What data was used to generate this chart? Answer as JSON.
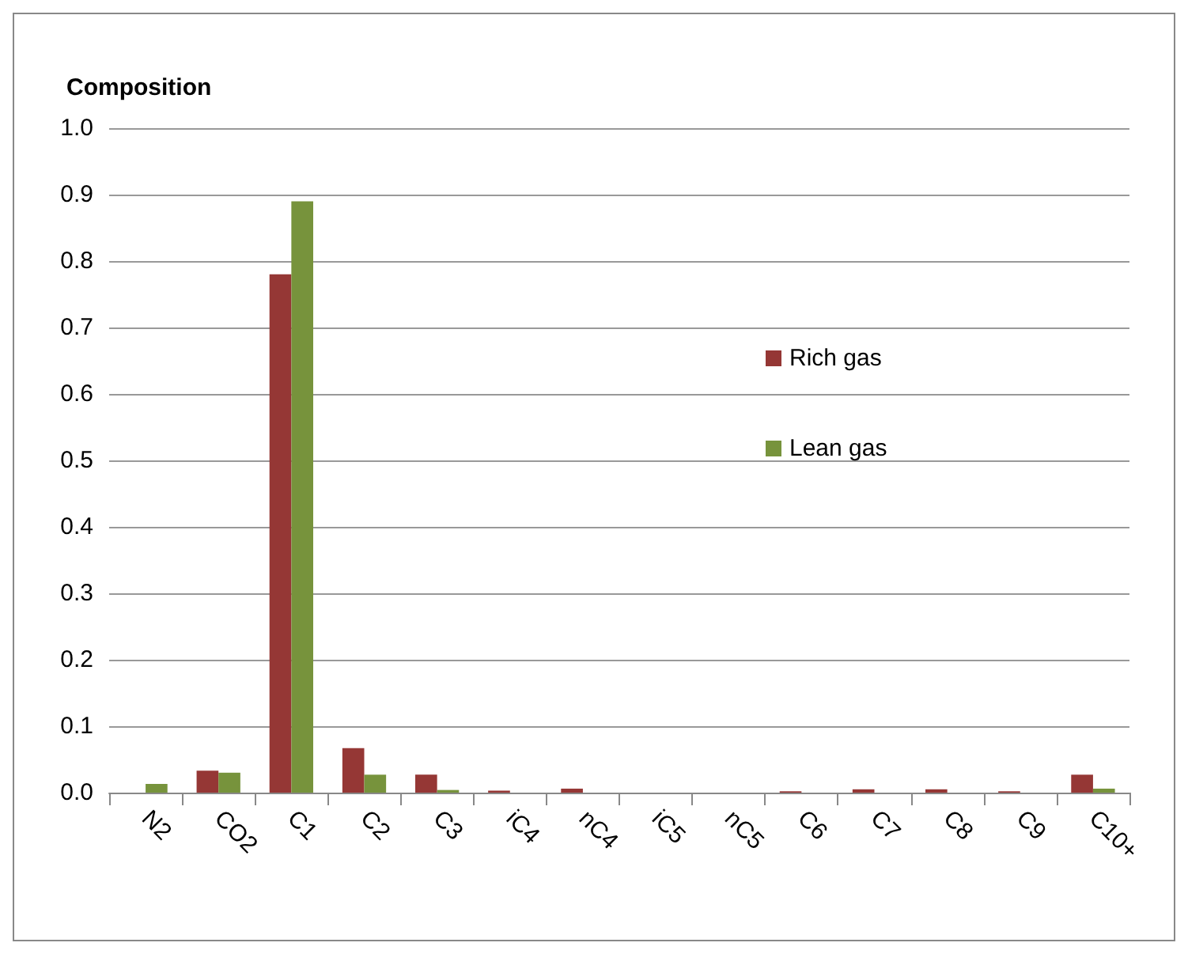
{
  "chart_data": {
    "type": "bar",
    "title": "Composition",
    "categories": [
      "N2",
      "CO2",
      "C1",
      "C2",
      "C3",
      "iC4",
      "nC4",
      "iC5",
      "nC5",
      "C6",
      "C7",
      "C8",
      "C9",
      "C10+"
    ],
    "series": [
      {
        "name": "Rich gas",
        "color": "#953735",
        "values": [
          0,
          0.033,
          0.78,
          0.067,
          0.027,
          0.003,
          0.006,
          0,
          0,
          0.002,
          0.005,
          0.005,
          0.002,
          0.027
        ]
      },
      {
        "name": "Lean gas",
        "color": "#77933c",
        "values": [
          0.013,
          0.03,
          0.89,
          0.027,
          0.004,
          0,
          0,
          0,
          0,
          0,
          0,
          0,
          0,
          0.006
        ]
      }
    ],
    "ylim": [
      0,
      1
    ],
    "yticks": [
      {
        "value": 0,
        "label": "0.0"
      },
      {
        "value": 0.1,
        "label": "0.1"
      },
      {
        "value": 0.2,
        "label": "0.2"
      },
      {
        "value": 0.3,
        "label": "0.3"
      },
      {
        "value": 0.4,
        "label": "0.4"
      },
      {
        "value": 0.5,
        "label": "0.5"
      },
      {
        "value": 0.6,
        "label": "0.6"
      },
      {
        "value": 0.7,
        "label": "0.7"
      },
      {
        "value": 0.8,
        "label": "0.8"
      },
      {
        "value": 0.9,
        "label": "0.9"
      },
      {
        "value": 1,
        "label": "1.0"
      }
    ],
    "grid": "y",
    "legend": "right"
  }
}
